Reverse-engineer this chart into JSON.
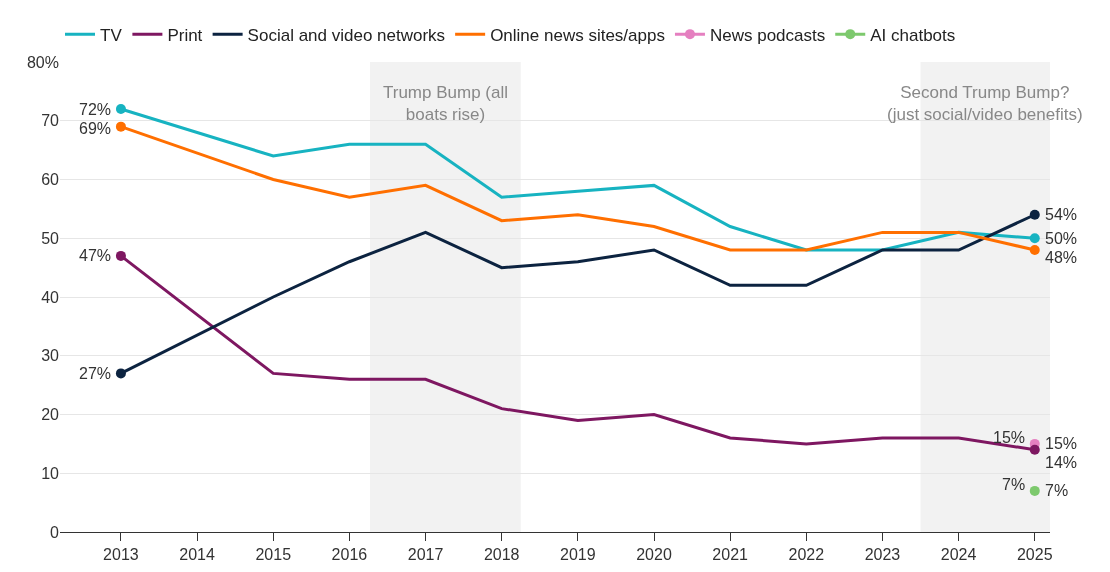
{
  "chart_data": {
    "type": "line",
    "xlim": [
      2012.2,
      2025.2
    ],
    "xticks": [
      2013,
      2014,
      2015,
      2016,
      2017,
      2018,
      2019,
      2020,
      2021,
      2022,
      2023,
      2024,
      2025
    ],
    "ylim": [
      0,
      80
    ],
    "yticks": [
      0,
      10,
      20,
      30,
      40,
      50,
      60,
      70,
      {
        "value": 80,
        "label": "80%"
      }
    ],
    "grid": "y",
    "legend": "top",
    "line_style": "solid",
    "series": [
      {
        "name": "TV",
        "color": "#17b3c1",
        "x": [
          2013,
          2015,
          2016,
          2017,
          2018,
          2019,
          2020,
          2021,
          2022,
          2023,
          2024,
          2025
        ],
        "values": [
          72,
          64,
          66,
          66,
          57,
          58,
          59,
          52,
          48,
          48,
          51,
          50
        ],
        "value_labels": [
          "72%",
          null,
          null,
          null,
          null,
          null,
          null,
          null,
          null,
          null,
          null,
          "50%"
        ]
      },
      {
        "name": "Print",
        "color": "#7e1761",
        "x": [
          2013,
          2015,
          2016,
          2017,
          2018,
          2019,
          2020,
          2021,
          2022,
          2023,
          2024,
          2025
        ],
        "values": [
          47,
          27,
          26,
          26,
          21,
          19,
          20,
          16,
          15,
          16,
          16,
          14
        ],
        "value_labels": [
          "47%",
          null,
          null,
          null,
          null,
          null,
          null,
          null,
          null,
          null,
          null,
          "14%"
        ]
      },
      {
        "name": "Social and video networks",
        "color": "#0c2340",
        "x": [
          2013,
          2015,
          2016,
          2017,
          2018,
          2019,
          2020,
          2021,
          2022,
          2023,
          2024,
          2025
        ],
        "values": [
          27,
          40,
          46,
          51,
          45,
          46,
          48,
          42,
          42,
          48,
          48,
          54
        ],
        "value_labels": [
          "27%",
          null,
          null,
          null,
          null,
          null,
          null,
          null,
          null,
          null,
          null,
          "54%"
        ]
      },
      {
        "name": "Online news sites/apps",
        "color": "#ff6f00",
        "x": [
          2013,
          2015,
          2016,
          2017,
          2018,
          2019,
          2020,
          2021,
          2022,
          2023,
          2024,
          2025
        ],
        "values": [
          69,
          60,
          57,
          59,
          53,
          54,
          52,
          48,
          48,
          51,
          51,
          48
        ],
        "value_labels": [
          "69%",
          null,
          null,
          null,
          null,
          null,
          null,
          null,
          null,
          null,
          null,
          "48%"
        ]
      },
      {
        "name": "News podcasts",
        "color": "#e57fc0",
        "marker": "circle",
        "x": [
          2025
        ],
        "values": [
          15
        ],
        "value_labels": [
          "15%"
        ]
      },
      {
        "name": "AI chatbots",
        "color": "#7dc96d",
        "marker": "circle",
        "x": [
          2025
        ],
        "values": [
          7
        ],
        "value_labels": [
          "7%"
        ]
      }
    ],
    "bands": [
      {
        "axis": "x",
        "from": 2016.27,
        "to": 2018.25,
        "label": "Trump Bump (all boats rise)",
        "color": "#f2f2f2"
      },
      {
        "axis": "x",
        "from": 2023.5,
        "to": 2025.2,
        "label": "Second Trump Bump? (just social/video benefits)",
        "color": "#f2f2f2"
      }
    ],
    "annotations": [
      {
        "text": "15%",
        "x": 2025,
        "y": 15
      },
      {
        "text": "7%",
        "x": 2025,
        "y": 7
      }
    ]
  }
}
